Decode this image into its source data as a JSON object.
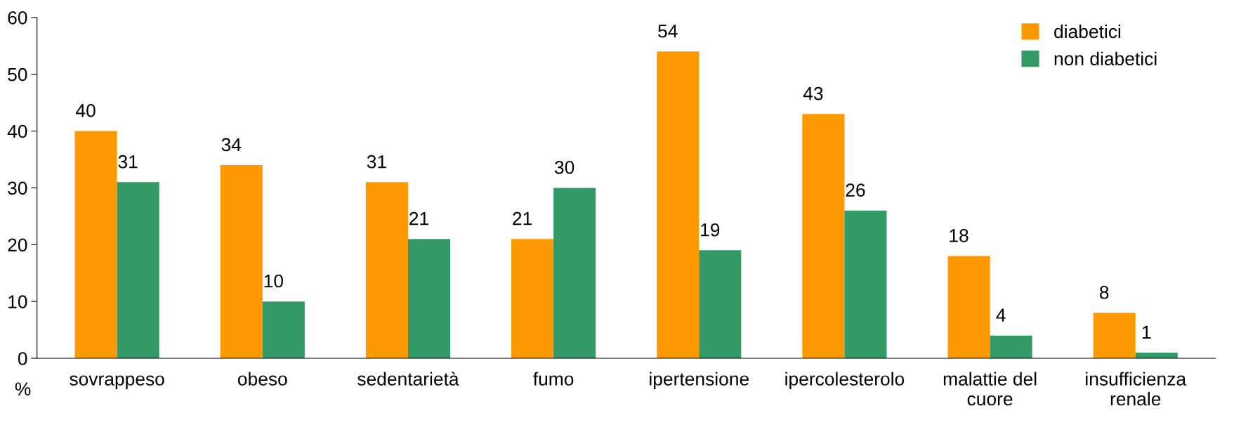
{
  "chart_data": {
    "type": "bar",
    "categories": [
      "sovrappeso",
      "obeso",
      "sedentarietà",
      "fumo",
      "ipertensione",
      "ipercolesterolo",
      "malattie del\ncuore",
      "insufficienza\nrenale"
    ],
    "series": [
      {
        "name": "diabetici",
        "color": "#ff9900",
        "values": [
          40,
          34,
          31,
          21,
          54,
          43,
          18,
          8
        ]
      },
      {
        "name": "non diabetici",
        "color": "#339966",
        "values": [
          31,
          10,
          21,
          30,
          19,
          26,
          4,
          1
        ]
      }
    ],
    "ylabel": "%",
    "ylim": [
      0,
      60
    ],
    "yticks": [
      0,
      10,
      20,
      30,
      40,
      50,
      60
    ],
    "data_labels": true,
    "grid": false,
    "legend": "top right"
  }
}
